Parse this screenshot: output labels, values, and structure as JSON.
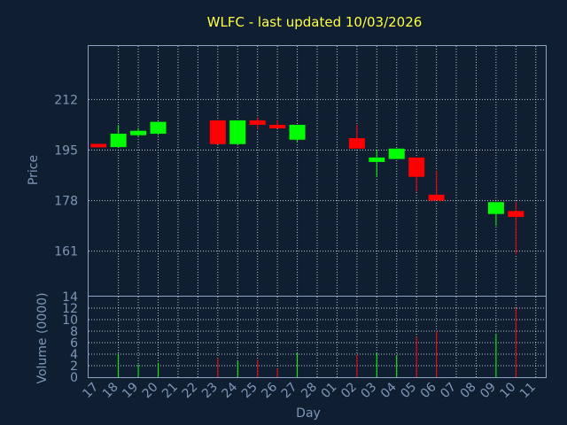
{
  "chart_data": {
    "type": "candlestick",
    "title": "WLFC - last updated 10/03/2026",
    "xlabel": "Day",
    "price_panel": {
      "ylabel": "Price",
      "yticks": [
        161,
        178,
        195,
        212
      ],
      "ylim": [
        146,
        230
      ]
    },
    "volume_panel": {
      "ylabel": "Volume (0000)",
      "yticks": [
        0,
        2,
        4,
        6,
        8,
        10,
        12,
        14
      ],
      "ylim": [
        0,
        14
      ]
    },
    "x_tick_labels": [
      "17",
      "18",
      "19",
      "20",
      "21",
      "22",
      "23",
      "24",
      "25",
      "26",
      "27",
      "28",
      "01",
      "02",
      "03",
      "04",
      "05",
      "06",
      "07",
      "08",
      "09",
      "10",
      "11"
    ],
    "up_color": "#00ff00",
    "down_color": "#ff0000",
    "candles": [
      {
        "day": "17",
        "open": 197.1,
        "close": 196.0,
        "high": 197.1,
        "low": 196.0,
        "volume": 0
      },
      {
        "day": "18",
        "open": 196.0,
        "close": 200.5,
        "high": 203.5,
        "low": 196.0,
        "volume": 4.0
      },
      {
        "day": "19",
        "open": 200.0,
        "close": 201.5,
        "high": 202.5,
        "low": 199.5,
        "volume": 2.2
      },
      {
        "day": "20",
        "open": 200.5,
        "close": 204.5,
        "high": 204.5,
        "low": 200.0,
        "volume": 2.5
      },
      {
        "day": "23",
        "open": 205.0,
        "close": 197.0,
        "high": 205.0,
        "low": 197.0,
        "volume": 3.3
      },
      {
        "day": "24",
        "open": 197.0,
        "close": 205.0,
        "high": 205.0,
        "low": 197.0,
        "volume": 2.8
      },
      {
        "day": "25",
        "open": 205.0,
        "close": 203.5,
        "high": 206.0,
        "low": 202.0,
        "volume": 3.0
      },
      {
        "day": "26",
        "open": 203.5,
        "close": 203.0,
        "high": 205.0,
        "low": 202.5,
        "volume": 1.5
      },
      {
        "day": "27",
        "open": 198.5,
        "close": 203.5,
        "high": 203.5,
        "low": 197.5,
        "volume": 4.2
      },
      {
        "day": "02",
        "open": 199.0,
        "close": 195.5,
        "high": 203.5,
        "low": 195.5,
        "volume": 3.8
      },
      {
        "day": "03",
        "open": 191.0,
        "close": 192.5,
        "high": 195.0,
        "low": 186.0,
        "volume": 4.2
      },
      {
        "day": "04",
        "open": 192.0,
        "close": 195.5,
        "high": 195.5,
        "low": 192.0,
        "volume": 3.8
      },
      {
        "day": "05",
        "open": 192.5,
        "close": 186.0,
        "high": 192.5,
        "low": 181.0,
        "volume": 7.0
      },
      {
        "day": "06",
        "open": 180.0,
        "close": 178.0,
        "high": 188.0,
        "low": 178.0,
        "volume": 8.0
      },
      {
        "day": "09",
        "open": 173.5,
        "close": 177.5,
        "high": 177.5,
        "low": 169.5,
        "volume": 7.5
      },
      {
        "day": "10",
        "open": 174.5,
        "close": 172.5,
        "high": 177.5,
        "low": 160.0,
        "volume": 12.0
      }
    ]
  }
}
